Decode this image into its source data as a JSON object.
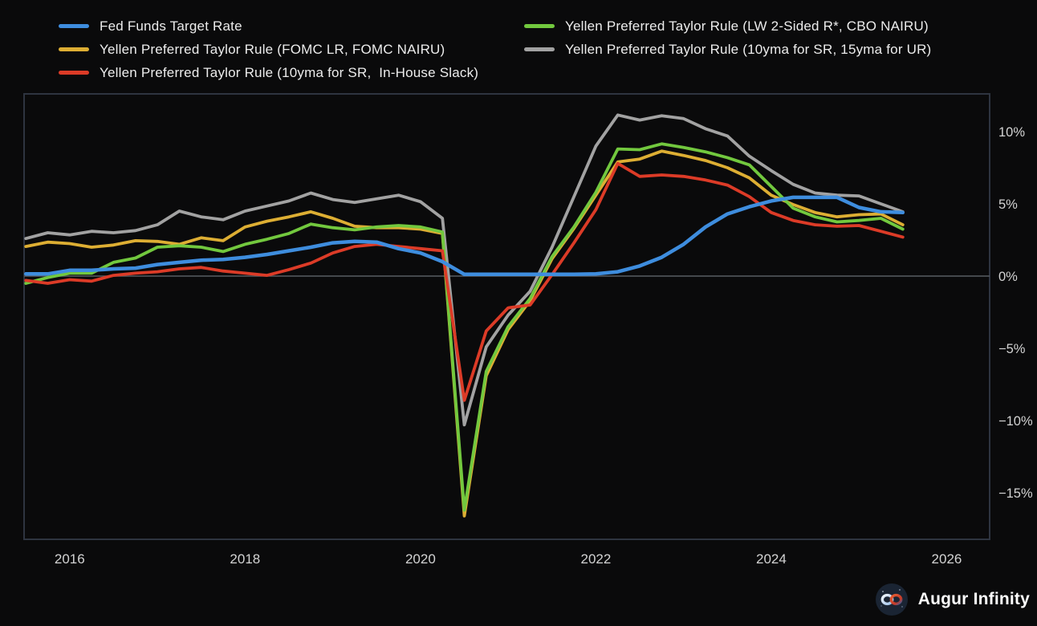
{
  "chart_data": {
    "type": "line",
    "x": [
      2015.5,
      2015.75,
      2016,
      2016.25,
      2016.5,
      2016.75,
      2017,
      2017.25,
      2017.5,
      2017.75,
      2018,
      2018.25,
      2018.5,
      2018.75,
      2019,
      2019.25,
      2019.5,
      2019.75,
      2020,
      2020.25,
      2020.5,
      2020.75,
      2021,
      2021.25,
      2021.5,
      2021.75,
      2022,
      2022.25,
      2022.5,
      2022.75,
      2023,
      2023.25,
      2023.5,
      2023.75,
      2024,
      2024.25,
      2024.5,
      2024.75,
      2025,
      2025.25,
      2025.5
    ],
    "series": [
      {
        "name": "Fed Funds Target Rate",
        "color": "#3e8dde",
        "values": [
          0.15,
          0.15,
          0.4,
          0.4,
          0.5,
          0.55,
          0.8,
          0.95,
          1.1,
          1.15,
          1.3,
          1.5,
          1.75,
          2.0,
          2.3,
          2.4,
          2.35,
          1.9,
          1.6,
          1.0,
          0.12,
          0.12,
          0.12,
          0.12,
          0.12,
          0.12,
          0.15,
          0.3,
          0.7,
          1.3,
          2.2,
          3.4,
          4.3,
          4.8,
          5.2,
          5.45,
          5.45,
          5.45,
          4.75,
          4.45,
          4.4
        ]
      },
      {
        "name": "Yellen Preferred Taylor Rule (FOMC LR, FOMC NAIRU)",
        "color": "#ddae33",
        "values": [
          2.05,
          2.35,
          2.25,
          2.0,
          2.15,
          2.45,
          2.4,
          2.2,
          2.65,
          2.45,
          3.4,
          3.8,
          4.1,
          4.45,
          4.0,
          3.45,
          3.35,
          3.35,
          3.25,
          2.95,
          -16.6,
          -6.9,
          -3.7,
          -1.7,
          1.2,
          3.3,
          5.6,
          7.9,
          8.1,
          8.65,
          8.35,
          8.0,
          7.5,
          6.8,
          5.6,
          4.95,
          4.4,
          4.1,
          4.25,
          4.3,
          3.55
        ]
      },
      {
        "name": "Yellen Preferred Taylor Rule (10yma for SR,  In-House Slack)",
        "color": "#dc3b27",
        "values": [
          -0.3,
          -0.5,
          -0.25,
          -0.35,
          0.05,
          0.2,
          0.3,
          0.5,
          0.6,
          0.35,
          0.2,
          0.05,
          0.45,
          0.9,
          1.6,
          2.05,
          2.2,
          2.05,
          1.9,
          1.75,
          -8.6,
          -3.8,
          -2.2,
          -2.0,
          0.1,
          2.3,
          4.6,
          7.8,
          6.9,
          7.0,
          6.9,
          6.65,
          6.3,
          5.5,
          4.4,
          3.85,
          3.55,
          3.45,
          3.5,
          3.1,
          2.7
        ]
      },
      {
        "name": "Yellen Preferred Taylor Rule (LW 2-Sided R*, CBO NAIRU)",
        "color": "#72c83e",
        "values": [
          -0.5,
          -0.1,
          0.2,
          0.2,
          0.95,
          1.25,
          2.0,
          2.1,
          2.0,
          1.7,
          2.2,
          2.55,
          2.95,
          3.6,
          3.35,
          3.2,
          3.4,
          3.5,
          3.4,
          3.05,
          -16.2,
          -6.6,
          -3.5,
          -1.55,
          1.35,
          3.4,
          5.8,
          8.8,
          8.75,
          9.15,
          8.9,
          8.6,
          8.2,
          7.7,
          6.2,
          4.7,
          4.1,
          3.75,
          3.85,
          4.0,
          3.25
        ]
      },
      {
        "name": "Yellen Preferred Taylor Rule (10yma for SR, 15yma for UR)",
        "color": "#a2a2a2",
        "values": [
          2.6,
          3.0,
          2.85,
          3.1,
          3.0,
          3.15,
          3.55,
          4.5,
          4.1,
          3.9,
          4.5,
          4.85,
          5.2,
          5.75,
          5.3,
          5.1,
          5.35,
          5.6,
          5.15,
          4.0,
          -10.3,
          -4.9,
          -2.7,
          -1.05,
          2.0,
          5.5,
          9.0,
          11.15,
          10.8,
          11.1,
          10.9,
          10.2,
          9.7,
          8.3,
          7.3,
          6.35,
          5.75,
          5.6,
          5.55,
          5.0,
          4.45
        ]
      }
    ],
    "draw_order": [
      4,
      1,
      3,
      2,
      0
    ],
    "x_ticks": [
      {
        "v": 2016,
        "label": "2016"
      },
      {
        "v": 2018,
        "label": "2018"
      },
      {
        "v": 2020,
        "label": "2020"
      },
      {
        "v": 2022,
        "label": "2022"
      },
      {
        "v": 2024,
        "label": "2024"
      },
      {
        "v": 2026,
        "label": "2026"
      }
    ],
    "y_ticks": [
      {
        "v": 10,
        "label": "10%"
      },
      {
        "v": 5,
        "label": "5%"
      },
      {
        "v": 0,
        "label": "0%"
      },
      {
        "v": -5,
        "label": "−5%"
      },
      {
        "v": -10,
        "label": "−10%"
      },
      {
        "v": -15,
        "label": "−15%"
      }
    ],
    "xlim": [
      2015.48,
      2026.49
    ],
    "ylim": [
      -18.22,
      12.61
    ],
    "zero_line": true,
    "grid": false,
    "legend_position": "top",
    "title": "",
    "xlabel": "",
    "ylabel": ""
  },
  "legend": {
    "items_note": "labels mirror chart_data.series names"
  },
  "footer": {
    "brand": "Augur Infinity"
  },
  "theme": {
    "background": "#0a0a0b",
    "plot_border": "#2e3440",
    "zero_line": "#585c63",
    "tick_text": "#d3d3d3",
    "legend_text": "#ececec"
  }
}
